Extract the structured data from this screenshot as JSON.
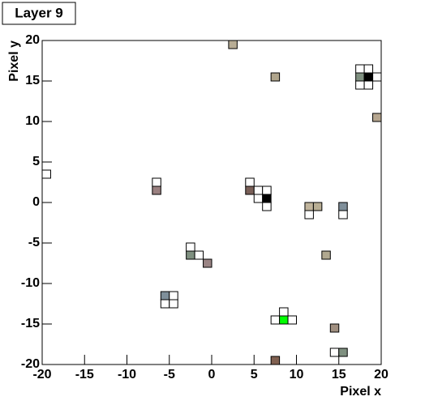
{
  "chart_data": {
    "type": "cells",
    "title": "Layer 9",
    "x_label": "Pixel x",
    "y_label": "Pixel y",
    "xlim": [
      -20,
      20
    ],
    "ylim": [
      -20,
      20
    ],
    "xticks": [
      -20,
      -15,
      -10,
      -5,
      0,
      5,
      10,
      15,
      20
    ],
    "yticks": [
      -20,
      -15,
      -10,
      -5,
      0,
      5,
      10,
      15,
      20
    ],
    "cells": {
      "x": [
        2,
        7,
        17,
        18,
        17,
        18,
        19,
        17,
        18,
        19,
        -20,
        -7,
        -7,
        4,
        4,
        5,
        6,
        5,
        6,
        6,
        11,
        12,
        11,
        15,
        15,
        -3,
        -3,
        -2,
        -1,
        13,
        -6,
        -5,
        -6,
        -5,
        8,
        7,
        8,
        9,
        14,
        14,
        15,
        7
      ],
      "y": [
        19,
        15,
        16,
        16,
        14,
        14,
        15,
        15,
        15,
        10,
        3,
        2,
        1,
        2,
        1,
        1,
        1,
        0,
        0,
        -1,
        -1,
        -1,
        -2,
        -1,
        -2,
        -6,
        -7,
        -7,
        -8,
        -7,
        -12,
        -12,
        -13,
        -13,
        -14,
        -15,
        -15,
        -15,
        -16,
        -19,
        -19,
        -20
      ],
      "color": [
        "#b8ad95",
        "#b0a58c",
        "#ffffff",
        "#ffffff",
        "#ffffff",
        "#ffffff",
        "#ffffff",
        "#7f9080",
        "#000000",
        "#b6a68f",
        "#ffffff",
        "#ffffff",
        "#9a8080",
        "#ffffff",
        "#7a6058",
        "#ffffff",
        "#ffffff",
        "#ffffff",
        "#000000",
        "#ffffff",
        "#c0b49c",
        "#b8ae94",
        "#ffffff",
        "#7f8f9a",
        "#ffffff",
        "#ffffff",
        "#7f9080",
        "#ffffff",
        "#9a8484",
        "#b0a890",
        "#7f8f9a",
        "#ffffff",
        "#ffffff",
        "#ffffff",
        "#ffffff",
        "#ffffff",
        "#00ff00",
        "#ffffff",
        "#a08f80",
        "#ffffff",
        "#7f9080",
        "#806050"
      ]
    }
  }
}
